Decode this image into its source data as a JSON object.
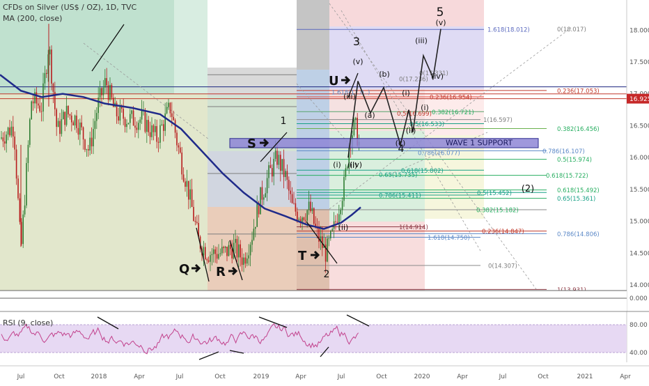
{
  "header": {
    "title": "CFDs on Silver (US$ / OZ), 1D, TVC",
    "indicator": "MA (200, close)",
    "rsi_label": "RSI (9, close)"
  },
  "chart_data": [
    {
      "type": "line",
      "title": "CFDs on Silver (US$ / OZ), 1D, TVC",
      "series": [
        {
          "name": "MA (200, close)",
          "x": [
            "2017-07-01",
            "2017-10-01",
            "2018-01-01",
            "2018-04-01",
            "2018-07-01",
            "2018-10-01",
            "2019-01-01",
            "2019-04-01",
            "2019-06-01",
            "2019-07-20"
          ],
          "y": [
            16.9,
            16.95,
            16.85,
            16.7,
            16.35,
            15.8,
            15.25,
            14.98,
            14.9,
            15.2
          ]
        }
      ],
      "y_ticks": [
        "18.000",
        "17.500",
        "17.000",
        "16.500",
        "16.000",
        "15.500",
        "15.000",
        "14.500",
        "14.000"
      ],
      "x_ticks": [
        "Jul",
        "Oct",
        "2018",
        "Apr",
        "Jul",
        "Oct",
        "2019",
        "Apr",
        "Jul",
        "Oct",
        "2020",
        "Apr",
        "Jul",
        "Oct",
        "2021",
        "Apr"
      ],
      "ylim": [
        13.7,
        18.5
      ],
      "last_price": "16.925",
      "zero_label": "0.000",
      "wave_labels": [
        "3",
        "(v)",
        "(iii)",
        "(b)",
        "(a)",
        "(i)",
        "(ii)",
        "(c)",
        "(iv)",
        "(i)",
        "(ii)",
        "(iv)",
        "(iii)",
        "(v)",
        "(i)",
        "(ii)",
        "1",
        "2",
        "4",
        "5",
        "(2)"
      ],
      "letter_labels": [
        "Q",
        "R",
        "S",
        "T",
        "U"
      ],
      "support_label": "WAVE 1 SUPPORT",
      "fib_levels": [
        "1.618(18.012)",
        "0(18.017)",
        "0(17.236)",
        "0(17.331)",
        "0.236(17.053)",
        "1.618(17.0..)",
        "0.236(16.954)",
        "0.382(16.721)",
        "0.5(16.699)",
        "0.5(16.533)",
        "1(16.597)",
        "0.382(16.456)",
        "0.786(16.107)",
        "0.786(16.077)",
        "0.5(15.974)",
        "0.618(15.802)",
        "0.618(15.722)",
        "0.786(15.411)",
        "0.5(15.452)",
        "0.618(15.492)",
        "0.65(15.361)",
        "0.382(15.182)",
        "1(14.914)",
        "1.618(14.750)",
        "0.236(14.847)",
        "0.786(14.806)",
        "0(14.307)",
        "1(13.931)",
        "0.65(15.735)"
      ]
    },
    {
      "type": "line",
      "title": "RSI (9, close)",
      "y_ticks": [
        "80.00",
        "40.00"
      ]
    }
  ]
}
